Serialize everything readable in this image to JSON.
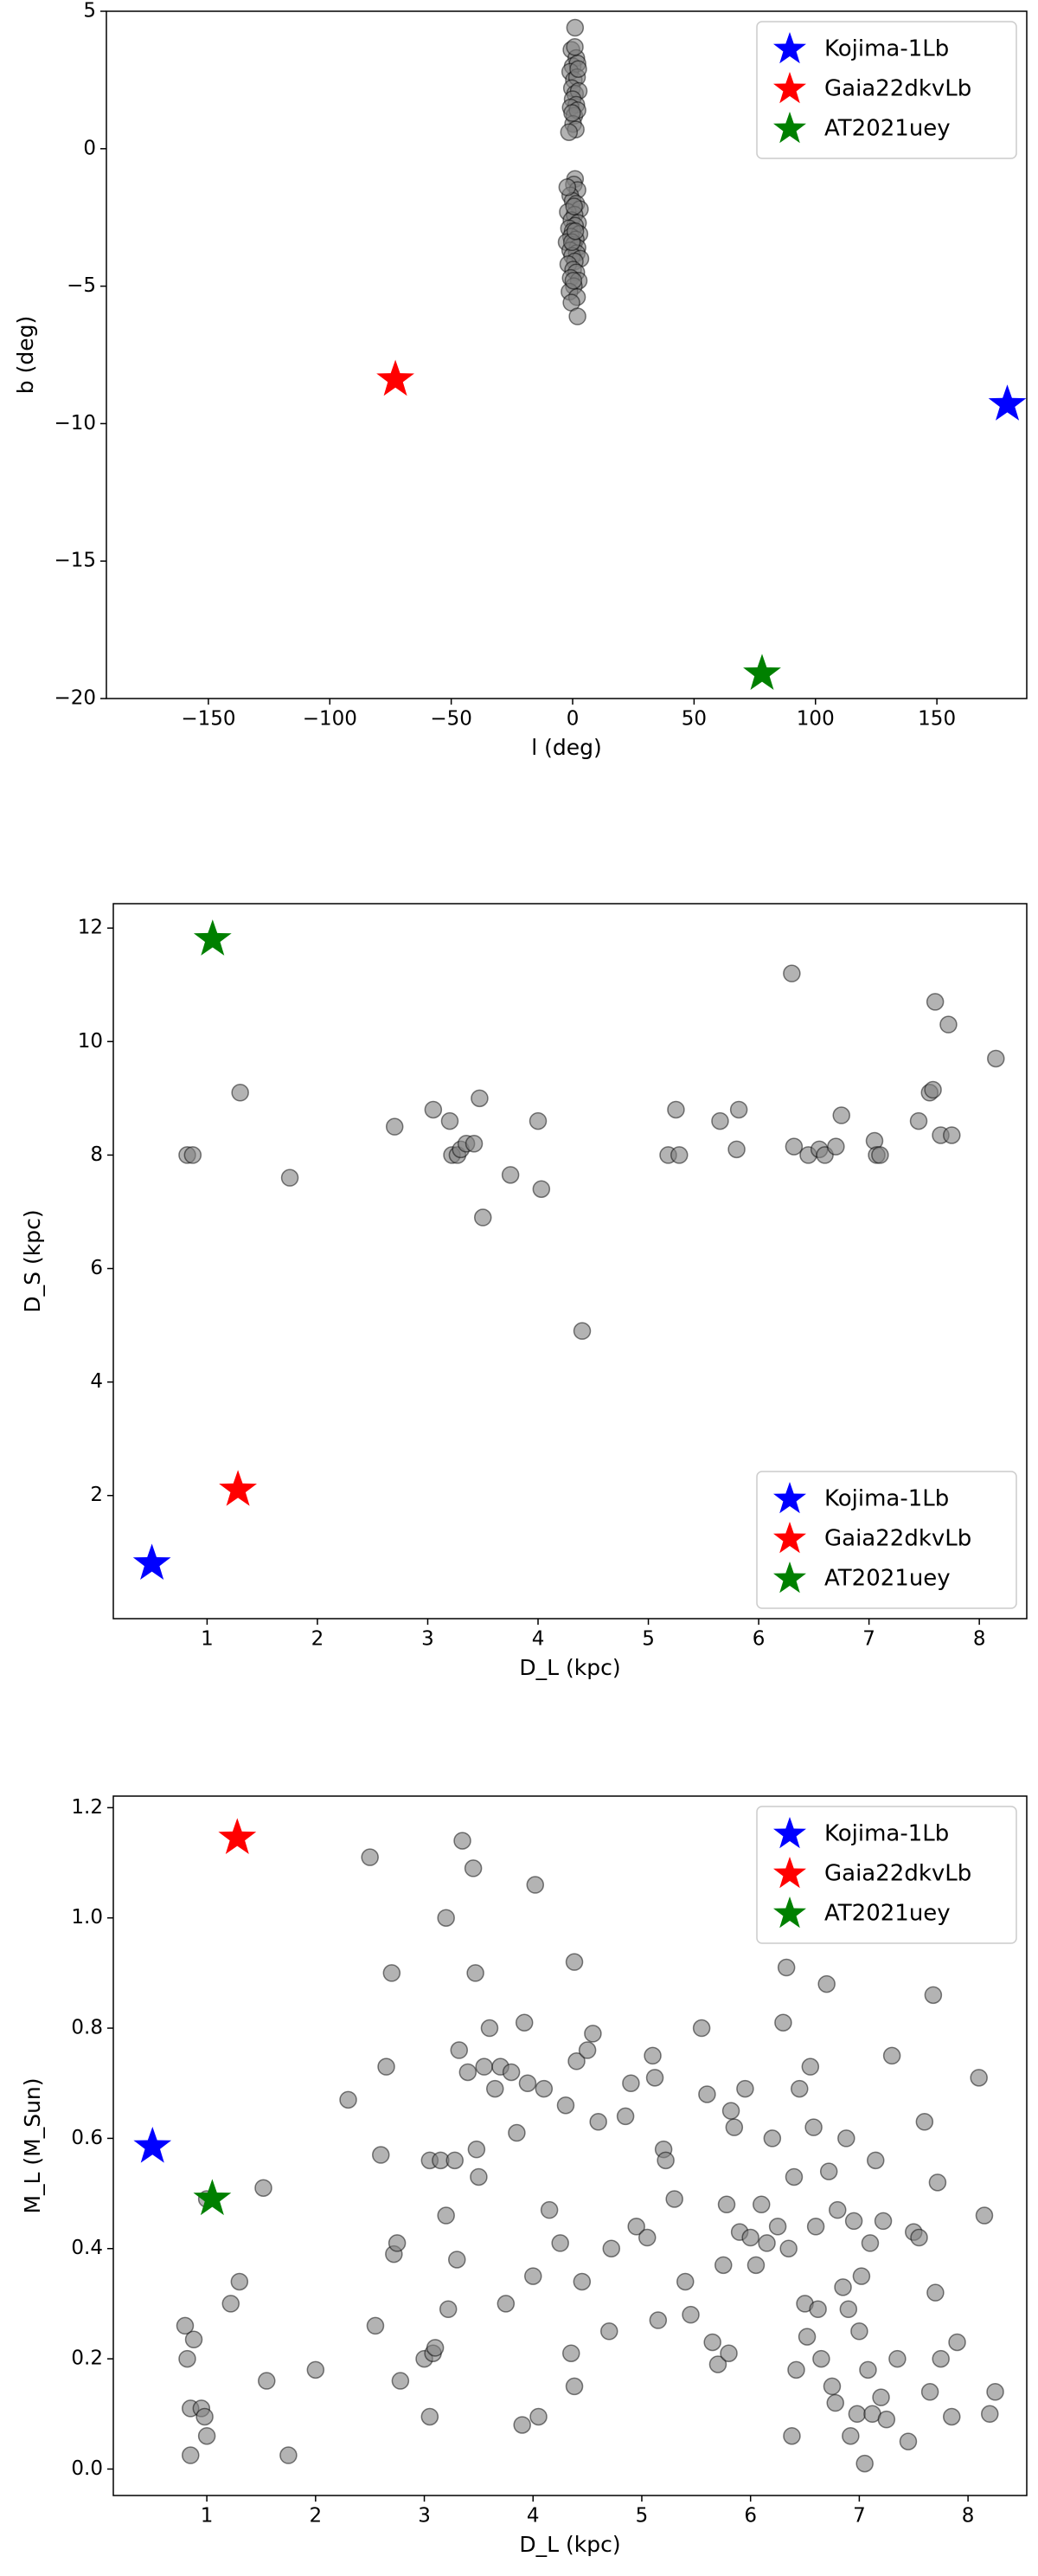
{
  "chart_data": [
    {
      "type": "scatter",
      "x_label": "l (deg)",
      "y_label": "b (deg)",
      "legend": "upper right",
      "xlim": [
        -192,
        187
      ],
      "ylim": [
        -20,
        5
      ],
      "xticks": [
        {
          "value": -150,
          "label": "−150"
        },
        {
          "value": -100,
          "label": "−100"
        },
        {
          "value": -50,
          "label": "−50"
        },
        0,
        50,
        100,
        150
      ],
      "yticks": [
        {
          "value": -20,
          "label": "−20"
        },
        {
          "value": -15,
          "label": "−15"
        },
        {
          "value": -10,
          "label": "−10"
        },
        {
          "value": -5,
          "label": "−5"
        },
        0,
        5
      ],
      "points": {
        "color": "#808080",
        "x": [
          1,
          -0.5,
          1.5,
          0,
          2,
          -1,
          0.5,
          1.8,
          -0.3,
          1,
          2.5,
          0,
          1.5,
          -0.8,
          0.7,
          2,
          0.2,
          1.3,
          -1.5,
          0.9,
          2.3,
          -0.2,
          1,
          0.5,
          2,
          -1,
          0,
          1.5,
          3,
          -2,
          0.8,
          -0.5,
          2.2,
          1,
          -1.5,
          0,
          2.8,
          -0.7,
          1.3,
          -2.5,
          0.4,
          2,
          -1,
          1.7,
          -0.2,
          3.2,
          0.9,
          -1.8,
          0.2,
          1.5,
          -0.8,
          2.5,
          0.5,
          -1.3,
          1.8,
          -0.5,
          2,
          0.6,
          -0.3,
          1.1,
          0.3,
          -2.2
        ],
        "y": [
          4.4,
          3.6,
          3.3,
          3,
          3.1,
          2.8,
          2.5,
          2.6,
          2.2,
          2,
          2.1,
          1.8,
          1.6,
          1.5,
          1.2,
          1.4,
          0.9,
          0.7,
          0.6,
          3.7,
          2.9,
          1.3,
          -1.1,
          -1.3,
          -1.5,
          -1.7,
          -1.9,
          -2,
          -2.2,
          -2.3,
          -2.4,
          -2.6,
          -2.7,
          -2.8,
          -2.9,
          -3,
          -3.1,
          -3.2,
          -3.3,
          -3.4,
          -3.5,
          -3.6,
          -3.7,
          -3.8,
          -3.9,
          -4,
          -4.1,
          -4.2,
          -4.4,
          -4.5,
          -4.7,
          -4.8,
          -5,
          -5.2,
          -5.4,
          -5.6,
          -6.1,
          -2.1,
          -3.4,
          -3,
          -4.8,
          -1.4
        ]
      },
      "series": [
        {
          "name": "Kojima-1Lb",
          "color": "#0000ff",
          "x": [
            179
          ],
          "y": [
            -9.3
          ]
        },
        {
          "name": "Gaia22dkvLb",
          "color": "#ff0000",
          "x": [
            -73
          ],
          "y": [
            -8.4
          ]
        },
        {
          "name": "AT2021uey",
          "color": "#008000",
          "x": [
            78
          ],
          "y": [
            -19.1
          ]
        }
      ]
    },
    {
      "type": "scatter",
      "x_label": "D_L (kpc)",
      "y_label": "D_S (kpc)",
      "legend": "lower right",
      "xlim": [
        0.15,
        8.43
      ],
      "ylim": [
        -0.17,
        12.43
      ],
      "xticks": [
        1,
        2,
        3,
        4,
        5,
        6,
        7,
        8
      ],
      "yticks": [
        2,
        4,
        6,
        8,
        10,
        12
      ],
      "points": {
        "color": "#808080",
        "x": [
          0.82,
          0.87,
          1.3,
          1.75,
          2.7,
          3.05,
          3.2,
          3.22,
          3.27,
          3.3,
          3.35,
          3.42,
          3.47,
          3.5,
          3.75,
          4.0,
          4.03,
          4.4,
          5.18,
          5.25,
          5.28,
          5.65,
          5.8,
          5.82,
          6.3,
          6.32,
          6.45,
          6.55,
          6.6,
          6.7,
          6.75,
          7.05,
          7.07,
          7.1,
          7.45,
          7.55,
          7.58,
          7.6,
          7.65,
          7.72,
          7.75,
          8.15
        ],
        "y": [
          8,
          8,
          9.1,
          7.6,
          8.5,
          8.8,
          8.6,
          8,
          8,
          8.1,
          8.2,
          8.2,
          9,
          6.9,
          7.65,
          8.6,
          7.4,
          4.9,
          8,
          8.8,
          8,
          8.6,
          8.1,
          8.8,
          11.2,
          8.15,
          8,
          8.1,
          8,
          8.15,
          8.7,
          8.25,
          8,
          8,
          8.6,
          9.1,
          9.15,
          10.7,
          8.35,
          10.3,
          8.35,
          9.7
        ]
      },
      "series": [
        {
          "name": "Kojima-1Lb",
          "color": "#0000ff",
          "x": [
            0.5
          ],
          "y": [
            0.8
          ]
        },
        {
          "name": "Gaia22dkvLb",
          "color": "#ff0000",
          "x": [
            1.28
          ],
          "y": [
            2.1
          ]
        },
        {
          "name": "AT2021uey",
          "color": "#008000",
          "x": [
            1.05
          ],
          "y": [
            11.8
          ]
        }
      ]
    },
    {
      "type": "scatter",
      "x_label": "D_L (kpc)",
      "y_label": "M_L (M_Sun)",
      "legend": "upper right",
      "xlim": [
        0.14,
        8.54
      ],
      "ylim": [
        -0.048,
        1.221
      ],
      "xticks": [
        1,
        2,
        3,
        4,
        5,
        6,
        7,
        8
      ],
      "yticks": [
        {
          "value": 0,
          "label": "0.0"
        },
        0.2,
        0.4,
        0.6,
        0.8,
        {
          "value": 1,
          "label": "1.0"
        },
        1.2
      ],
      "points": {
        "color": "#808080",
        "x": [
          0.8,
          0.82,
          0.85,
          0.88,
          0.85,
          0.95,
          0.98,
          1.0,
          1.0,
          1.22,
          1.3,
          1.52,
          1.55,
          1.75,
          2.0,
          2.3,
          2.5,
          2.55,
          2.6,
          2.65,
          2.7,
          2.72,
          2.75,
          2.78,
          3.0,
          3.05,
          3.05,
          3.08,
          3.1,
          3.15,
          3.2,
          3.2,
          3.22,
          3.28,
          3.3,
          3.32,
          3.35,
          3.4,
          3.45,
          3.47,
          3.48,
          3.5,
          3.55,
          3.6,
          3.65,
          3.7,
          3.75,
          3.8,
          3.85,
          3.9,
          3.92,
          3.95,
          4.0,
          4.02,
          4.05,
          4.1,
          4.15,
          4.25,
          4.3,
          4.35,
          4.38,
          4.38,
          4.4,
          4.45,
          4.5,
          4.55,
          4.6,
          4.7,
          4.72,
          4.85,
          4.9,
          4.95,
          5.05,
          5.1,
          5.12,
          5.15,
          5.2,
          5.22,
          5.3,
          5.4,
          5.45,
          5.55,
          5.6,
          5.65,
          5.7,
          5.75,
          5.78,
          5.8,
          5.82,
          5.85,
          5.9,
          5.95,
          6.0,
          6.05,
          6.1,
          6.15,
          6.2,
          6.25,
          6.3,
          6.33,
          6.35,
          6.38,
          6.4,
          6.42,
          6.45,
          6.5,
          6.52,
          6.55,
          6.58,
          6.6,
          6.62,
          6.65,
          6.7,
          6.72,
          6.75,
          6.78,
          6.8,
          6.85,
          6.88,
          6.9,
          6.92,
          6.95,
          6.98,
          7.0,
          7.02,
          7.05,
          7.08,
          7.1,
          7.12,
          7.15,
          7.2,
          7.22,
          7.25,
          7.3,
          7.35,
          7.45,
          7.5,
          7.55,
          7.6,
          7.65,
          7.68,
          7.7,
          7.72,
          7.75,
          7.85,
          7.9,
          8.1,
          8.15,
          8.2,
          8.25
        ],
        "y": [
          0.26,
          0.2,
          0.11,
          0.235,
          0.025,
          0.11,
          0.095,
          0.06,
          0.49,
          0.3,
          0.34,
          0.51,
          0.16,
          0.025,
          0.18,
          0.67,
          1.11,
          0.26,
          0.57,
          0.73,
          0.9,
          0.39,
          0.41,
          0.16,
          0.2,
          0.56,
          0.095,
          0.21,
          0.22,
          0.56,
          1.0,
          0.46,
          0.29,
          0.56,
          0.38,
          0.76,
          1.14,
          0.72,
          1.09,
          0.9,
          0.58,
          0.53,
          0.73,
          0.8,
          0.69,
          0.73,
          0.3,
          0.72,
          0.61,
          0.08,
          0.81,
          0.7,
          0.35,
          1.06,
          0.095,
          0.69,
          0.47,
          0.41,
          0.66,
          0.21,
          0.92,
          0.15,
          0.74,
          0.34,
          0.76,
          0.79,
          0.63,
          0.25,
          0.4,
          0.64,
          0.7,
          0.44,
          0.42,
          0.75,
          0.71,
          0.27,
          0.58,
          0.56,
          0.49,
          0.34,
          0.28,
          0.8,
          0.68,
          0.23,
          0.19,
          0.37,
          0.48,
          0.21,
          0.65,
          0.62,
          0.43,
          0.69,
          0.42,
          0.37,
          0.48,
          0.41,
          0.6,
          0.44,
          0.81,
          0.91,
          0.4,
          0.06,
          0.53,
          0.18,
          0.69,
          0.3,
          0.24,
          0.73,
          0.62,
          0.44,
          0.29,
          0.2,
          0.88,
          0.54,
          0.15,
          0.12,
          0.47,
          0.33,
          0.6,
          0.29,
          0.06,
          0.45,
          0.1,
          0.25,
          0.35,
          0.01,
          0.18,
          0.41,
          0.1,
          0.56,
          0.13,
          0.45,
          0.09,
          0.75,
          0.2,
          0.05,
          0.43,
          0.42,
          0.63,
          0.14,
          0.86,
          0.32,
          0.52,
          0.2,
          0.095,
          0.23,
          0.71,
          0.46,
          0.1,
          0.14
        ]
      },
      "series": [
        {
          "name": "Kojima-1Lb",
          "color": "#0000ff",
          "x": [
            0.5
          ],
          "y": [
            0.585
          ]
        },
        {
          "name": "Gaia22dkvLb",
          "color": "#ff0000",
          "x": [
            1.28
          ],
          "y": [
            1.145
          ]
        },
        {
          "name": "AT2021uey",
          "color": "#008000",
          "x": [
            1.05
          ],
          "y": [
            0.49
          ]
        }
      ]
    }
  ]
}
